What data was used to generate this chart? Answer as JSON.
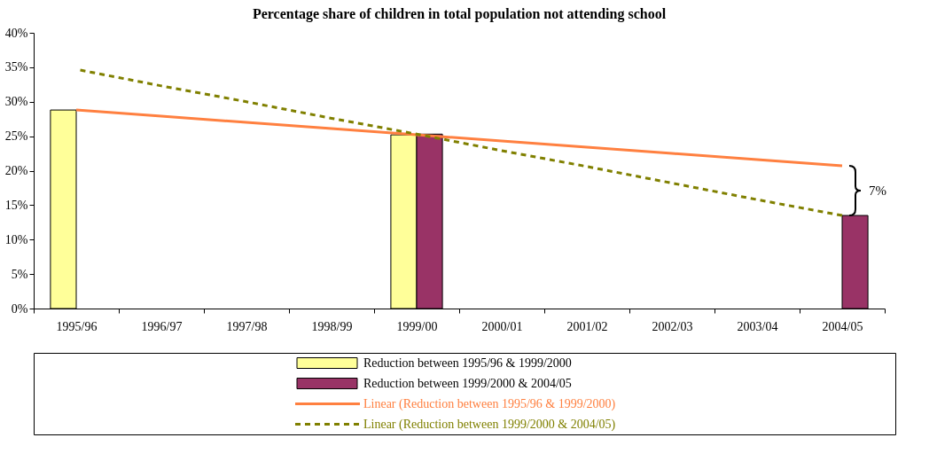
{
  "chart_data": {
    "type": "bar",
    "title": "Percentage share of children in total population not attending school",
    "categories": [
      "1995/96",
      "1996/97",
      "1997/98",
      "1998/99",
      "1999/00",
      "2000/01",
      "2001/02",
      "2002/03",
      "2003/04",
      "2004/05"
    ],
    "series": [
      {
        "name": "Reduction between 1995/96 & 1999/2000",
        "color": "#ffff99",
        "values": [
          28.8,
          null,
          null,
          null,
          25.2,
          null,
          null,
          null,
          null,
          null
        ]
      },
      {
        "name": "Reduction between 1999/2000 & 2004/05",
        "color": "#993366",
        "values": [
          null,
          null,
          null,
          null,
          25.3,
          null,
          null,
          null,
          null,
          13.5
        ]
      },
      {
        "name": "Linear (Reduction between 1995/96 & 1999/2000)",
        "type": "line",
        "color": "#ff8040",
        "values": [
          28.8,
          27.9,
          27.0,
          26.1,
          25.2,
          24.3,
          23.4,
          22.5,
          21.6,
          20.7
        ]
      },
      {
        "name": "Linear (Reduction between 1999/2000 & 2004/05)",
        "type": "line",
        "line_style": "dashed",
        "color": "#808000",
        "values": [
          34.7,
          32.3,
          30.0,
          27.6,
          25.3,
          22.9,
          20.6,
          18.2,
          15.8,
          13.5
        ]
      }
    ],
    "ylim": [
      0,
      40
    ],
    "yticks": [
      {
        "value": 0,
        "label": "0%"
      },
      {
        "value": 5,
        "label": "5%"
      },
      {
        "value": 10,
        "label": "10%"
      },
      {
        "value": 15,
        "label": "15%"
      },
      {
        "value": 20,
        "label": "20%"
      },
      {
        "value": 25,
        "label": "25%"
      },
      {
        "value": 30,
        "label": "30%"
      },
      {
        "value": 35,
        "label": "35%"
      },
      {
        "value": 40,
        "label": "40%"
      }
    ],
    "annotations": [
      "7%"
    ],
    "legend": "bottom"
  }
}
